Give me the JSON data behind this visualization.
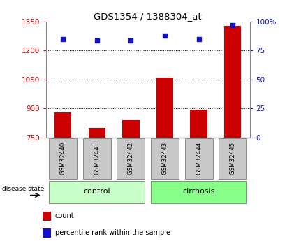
{
  "title": "GDS1354 / 1388304_at",
  "samples": [
    "GSM32440",
    "GSM32441",
    "GSM32442",
    "GSM32443",
    "GSM32444",
    "GSM32445"
  ],
  "counts": [
    880,
    800,
    840,
    1060,
    895,
    1330
  ],
  "percentile_ranks": [
    85,
    84,
    84,
    88,
    85,
    97
  ],
  "ylim_left": [
    750,
    1350
  ],
  "ylim_right": [
    0,
    100
  ],
  "yticks_left": [
    750,
    900,
    1050,
    1200,
    1350
  ],
  "yticks_right": [
    0,
    25,
    50,
    75,
    100
  ],
  "ytick_labels_right": [
    "0",
    "25",
    "50",
    "75",
    "100%"
  ],
  "bar_color": "#cc0000",
  "dot_color": "#1111cc",
  "grid_lines": [
    900,
    1050,
    1200
  ],
  "tick_color_left": "#cc0000",
  "tick_color_right": "#1111cc",
  "legend_items": [
    {
      "color": "#cc0000",
      "label": "count"
    },
    {
      "color": "#1111cc",
      "label": "percentile rank within the sample"
    }
  ],
  "disease_state_label": "disease state",
  "group_box_color": "#c8c8c8",
  "group_box_border": "#888888",
  "group_info": [
    {
      "start": 0,
      "end": 2,
      "label": "control",
      "color": "#c8ffc8"
    },
    {
      "start": 3,
      "end": 5,
      "label": "cirrhosis",
      "color": "#88ff88"
    }
  ],
  "bg_color": "#ffffff"
}
